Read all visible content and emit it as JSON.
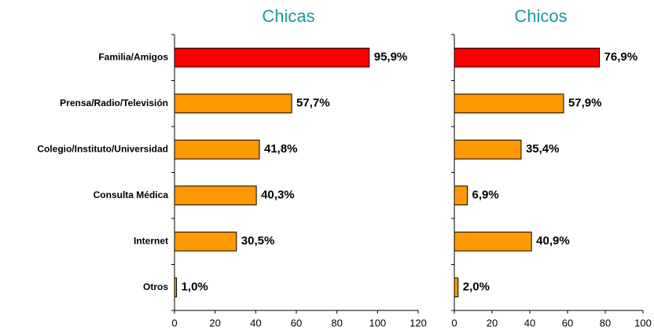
{
  "chart_data": [
    {
      "type": "bar",
      "orientation": "horizontal",
      "title": "Chicas",
      "categories": [
        "Familia/Amigos",
        "Prensa/Radio/Televisión",
        "Colegio/Instituto/Universidad",
        "Consulta Médica",
        "Internet",
        "Otros"
      ],
      "values": [
        95.9,
        57.7,
        41.8,
        40.3,
        30.5,
        1.0
      ],
      "value_labels": [
        "95,9%",
        "57,7%",
        "41,8%",
        "40,3%",
        "30,5%",
        "1,0%"
      ],
      "colors": [
        "#ff0000",
        "#ff9900",
        "#ff9900",
        "#ff9900",
        "#ff9900",
        "#ff9900"
      ],
      "xlim": [
        0,
        120
      ],
      "xticks": [
        0,
        20,
        40,
        60,
        80,
        100,
        120
      ]
    },
    {
      "type": "bar",
      "orientation": "horizontal",
      "title": "Chicos",
      "categories": [
        null,
        null,
        null,
        null,
        null,
        null
      ],
      "values": [
        76.9,
        57.9,
        35.4,
        6.9,
        40.9,
        2.0
      ],
      "value_labels": [
        "76,9%",
        "57,9%",
        "35,4%",
        "6,9%",
        "40,9%",
        "2,0%"
      ],
      "colors": [
        "#ff0000",
        "#ff9900",
        "#ff9900",
        "#ff9900",
        "#ff9900",
        "#ff9900"
      ],
      "xlim": [
        0,
        100
      ],
      "xticks": [
        0,
        20,
        40,
        60,
        80,
        100
      ]
    }
  ]
}
